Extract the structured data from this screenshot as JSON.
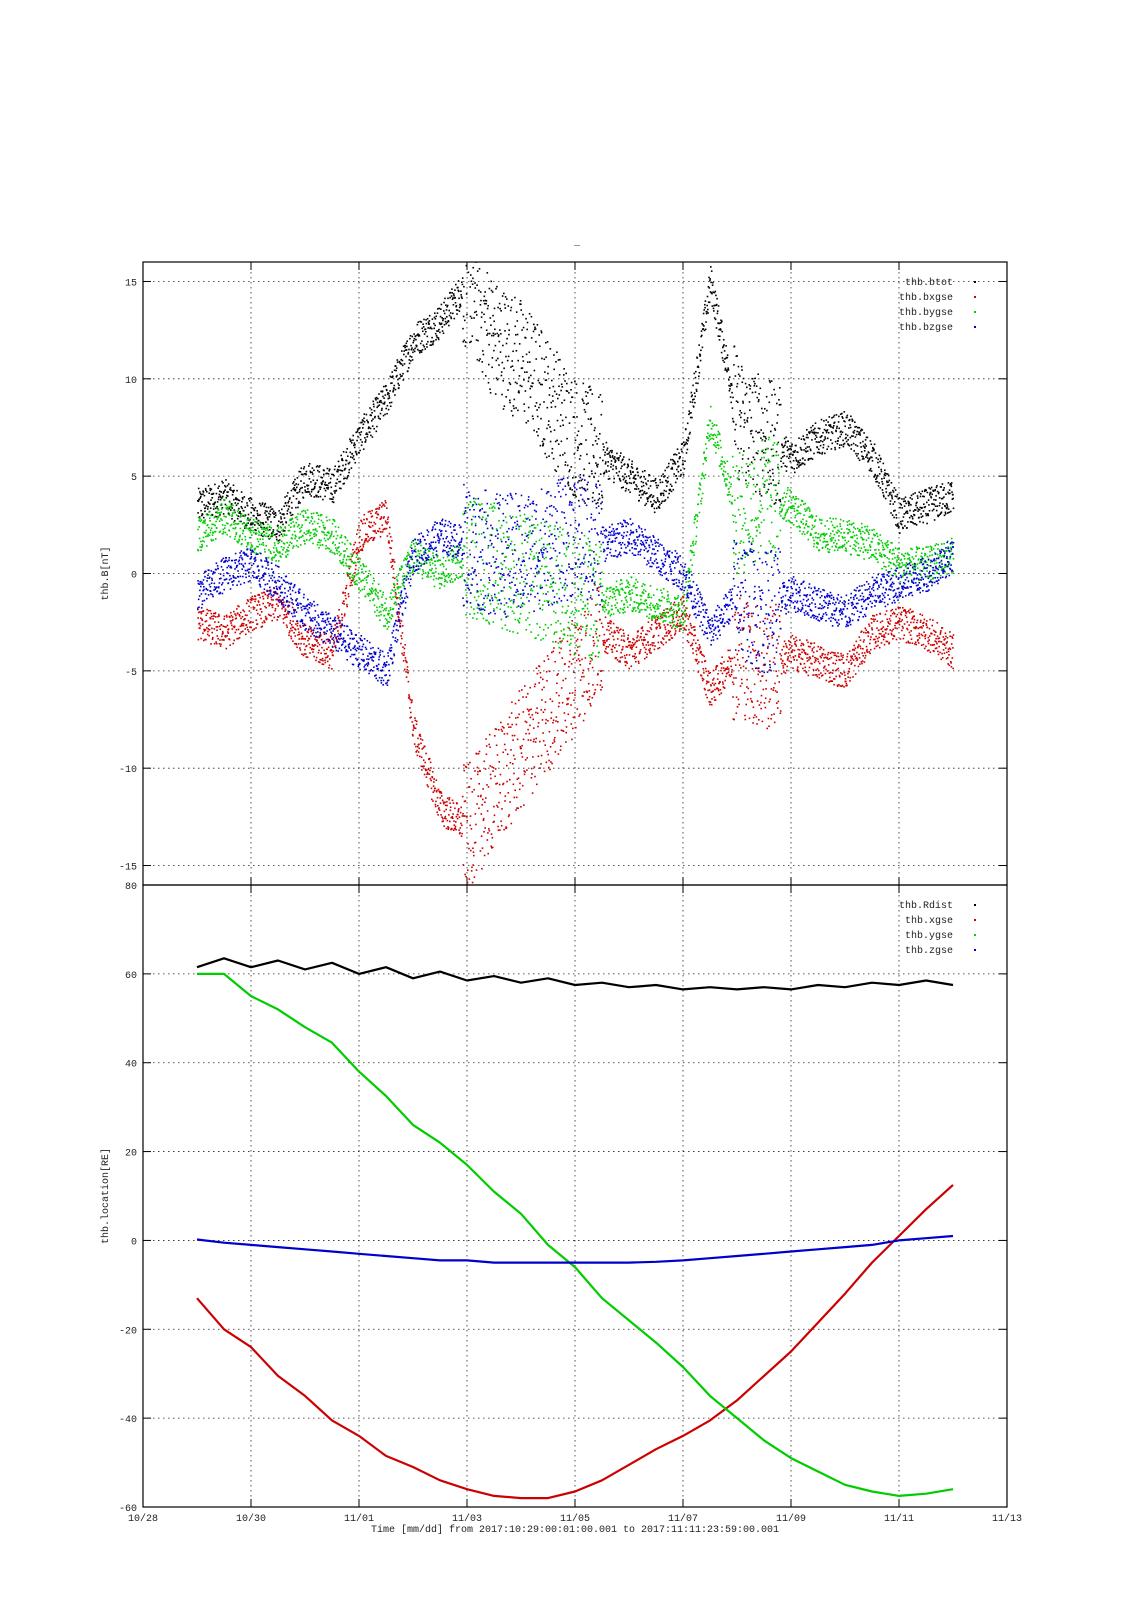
{
  "colors": {
    "black": "#000000",
    "red": "#cc0000",
    "green": "#00cc00",
    "blue": "#0000cc"
  },
  "chart_data": [
    {
      "type": "scatter",
      "title": "",
      "xlabel": "",
      "ylabel": "thb.B[nT]",
      "ylim": [
        -16,
        16
      ],
      "yticks": [
        15,
        10,
        5,
        0,
        -5,
        -10,
        -15
      ],
      "grid": true,
      "legend_position": "top-right",
      "series": [
        {
          "name": "thb.btot",
          "color": "#000000",
          "x": [
            "10/29 00:00",
            "10/29 12:00",
            "10/30 00:00",
            "10/30 12:00",
            "10/31 00:00",
            "10/31 12:00",
            "11/01 00:00",
            "11/01 12:00",
            "11/02 00:00",
            "11/02 12:00",
            "11/03 00:00",
            "11/03 12:00",
            "11/04 00:00",
            "11/04 12:00",
            "11/05 00:00",
            "11/05 12:00",
            "11/06 00:00",
            "11/06 12:00",
            "11/07 00:00",
            "11/07 12:00",
            "11/08 00:00",
            "11/08 12:00",
            "11/09 00:00",
            "11/09 12:00",
            "11/10 00:00",
            "11/10 12:00",
            "11/11 00:00",
            "11/11 12:00",
            "11/12 00:00"
          ],
          "y": [
            3.5,
            4.0,
            3.0,
            2.5,
            5.0,
            4.5,
            7.0,
            9.0,
            12.0,
            13.0,
            15.0,
            12.0,
            11.0,
            9.0,
            7.0,
            6.0,
            5.0,
            4.0,
            6.0,
            15.0,
            8.0,
            7.0,
            6.0,
            7.0,
            7.5,
            6.0,
            3.0,
            3.5,
            4.0
          ]
        },
        {
          "name": "thb.bxgse",
          "color": "#cc0000",
          "x": [
            "10/29 00:00",
            "10/29 12:00",
            "10/30 00:00",
            "10/30 12:00",
            "10/31 00:00",
            "10/31 12:00",
            "11/01 00:00",
            "11/01 12:00",
            "11/02 00:00",
            "11/02 12:00",
            "11/03 00:00",
            "11/03 12:00",
            "11/04 00:00",
            "11/04 12:00",
            "11/05 00:00",
            "11/05 12:00",
            "11/06 00:00",
            "11/06 12:00",
            "11/07 00:00",
            "11/07 12:00",
            "11/08 00:00",
            "11/08 12:00",
            "11/09 00:00",
            "11/09 12:00",
            "11/10 00:00",
            "11/10 12:00",
            "11/11 00:00",
            "11/11 12:00",
            "11/12 00:00"
          ],
          "y": [
            -2.5,
            -3.0,
            -2.0,
            -1.5,
            -3.5,
            -4.0,
            2.0,
            3.0,
            -8.0,
            -12.0,
            -13.0,
            -11.0,
            -9.0,
            -7.0,
            -5.0,
            -3.0,
            -4.0,
            -3.0,
            -2.0,
            -6.0,
            -4.0,
            -5.0,
            -4.0,
            -4.5,
            -5.0,
            -3.0,
            -2.5,
            -3.0,
            -4.0
          ]
        },
        {
          "name": "thb.bygse",
          "color": "#00cc00",
          "x": [
            "10/29 00:00",
            "10/29 12:00",
            "10/30 00:00",
            "10/30 12:00",
            "10/31 00:00",
            "10/31 12:00",
            "11/01 00:00",
            "11/01 12:00",
            "11/02 00:00",
            "11/02 12:00",
            "11/03 00:00",
            "11/03 12:00",
            "11/04 00:00",
            "11/04 12:00",
            "11/05 00:00",
            "11/05 12:00",
            "11/06 00:00",
            "11/06 12:00",
            "11/07 00:00",
            "11/07 12:00",
            "11/08 00:00",
            "11/08 12:00",
            "11/09 00:00",
            "11/09 12:00",
            "11/10 00:00",
            "11/10 12:00",
            "11/11 00:00",
            "11/11 12:00",
            "11/12 00:00"
          ],
          "y": [
            2.0,
            3.0,
            2.0,
            1.5,
            2.5,
            2.0,
            0.0,
            -2.0,
            1.0,
            0.0,
            1.0,
            0.5,
            0.0,
            -0.5,
            -1.0,
            -1.5,
            -1.0,
            -1.5,
            -2.0,
            8.0,
            3.0,
            4.0,
            3.5,
            2.0,
            2.0,
            1.5,
            0.5,
            0.5,
            1.0
          ]
        },
        {
          "name": "thb.bzgse",
          "color": "#0000cc",
          "x": [
            "10/29 00:00",
            "10/29 12:00",
            "10/30 00:00",
            "10/30 12:00",
            "10/31 00:00",
            "10/31 12:00",
            "11/01 00:00",
            "11/01 12:00",
            "11/02 00:00",
            "11/02 12:00",
            "11/03 00:00",
            "11/03 12:00",
            "11/04 00:00",
            "11/04 12:00",
            "11/05 00:00",
            "11/05 12:00",
            "11/06 00:00",
            "11/06 12:00",
            "11/07 00:00",
            "11/07 12:00",
            "11/08 00:00",
            "11/08 12:00",
            "11/09 00:00",
            "11/09 12:00",
            "11/10 00:00",
            "11/10 12:00",
            "11/11 00:00",
            "11/11 12:00",
            "11/12 00:00"
          ],
          "y": [
            -1.0,
            0.0,
            0.5,
            -0.5,
            -2.0,
            -3.0,
            -4.0,
            -5.0,
            1.0,
            2.0,
            1.5,
            1.0,
            1.0,
            1.5,
            2.0,
            1.5,
            2.0,
            1.0,
            0.0,
            -3.0,
            -1.0,
            -2.0,
            -1.0,
            -1.5,
            -2.0,
            -1.0,
            -0.5,
            0.0,
            1.0
          ]
        }
      ]
    },
    {
      "type": "line",
      "title": "",
      "xlabel": "Time [mm/dd]  from 2017:10:29:00:01:00.001  to  2017:11:11:23:59:00.001",
      "ylabel": "thb.location[RE]",
      "xlim": [
        "10/28",
        "11/13"
      ],
      "xticks": [
        "10/28",
        "10/30",
        "11/01",
        "11/03",
        "11/05",
        "11/07",
        "11/09",
        "11/11",
        "11/13"
      ],
      "ylim": [
        -60,
        80
      ],
      "yticks": [
        80,
        60,
        40,
        20,
        0,
        -20,
        -40,
        -60
      ],
      "grid": true,
      "legend_position": "top-right",
      "series": [
        {
          "name": "thb.Rdist",
          "color": "#000000",
          "x": [
            "10/29 00:00",
            "10/29 12:00",
            "10/30 00:00",
            "10/30 12:00",
            "10/31 00:00",
            "10/31 12:00",
            "11/01 00:00",
            "11/01 12:00",
            "11/02 00:00",
            "11/02 12:00",
            "11/03 00:00",
            "11/03 12:00",
            "11/04 00:00",
            "11/04 12:00",
            "11/05 00:00",
            "11/05 12:00",
            "11/06 00:00",
            "11/06 12:00",
            "11/07 00:00",
            "11/07 12:00",
            "11/08 00:00",
            "11/08 12:00",
            "11/09 00:00",
            "11/09 12:00",
            "11/10 00:00",
            "11/10 12:00",
            "11/11 00:00",
            "11/11 12:00",
            "11/12 00:00"
          ],
          "y": [
            61.5,
            63.5,
            61.5,
            63.0,
            61.0,
            62.5,
            60.0,
            61.5,
            59.0,
            60.5,
            58.5,
            59.5,
            58.0,
            59.0,
            57.5,
            58.0,
            57.0,
            57.5,
            56.5,
            57.0,
            56.5,
            57.0,
            56.5,
            57.5,
            57.0,
            58.0,
            57.5,
            58.5,
            57.5
          ]
        },
        {
          "name": "thb.xgse",
          "color": "#cc0000",
          "x": [
            "10/29 00:00",
            "10/29 12:00",
            "10/30 00:00",
            "10/30 12:00",
            "10/31 00:00",
            "10/31 12:00",
            "11/01 00:00",
            "11/01 12:00",
            "11/02 00:00",
            "11/02 12:00",
            "11/03 00:00",
            "11/03 12:00",
            "11/04 00:00",
            "11/04 12:00",
            "11/05 00:00",
            "11/05 12:00",
            "11/06 00:00",
            "11/06 12:00",
            "11/07 00:00",
            "11/07 12:00",
            "11/08 00:00",
            "11/08 12:00",
            "11/09 00:00",
            "11/09 12:00",
            "11/10 00:00",
            "11/10 12:00",
            "11/11 00:00",
            "11/11 12:00",
            "11/12 00:00"
          ],
          "y": [
            -13.0,
            -20.0,
            -24.0,
            -30.5,
            -35.0,
            -40.5,
            -44.0,
            -48.5,
            -51.0,
            -54.0,
            -56.0,
            -57.5,
            -58.0,
            -58.0,
            -56.5,
            -54.0,
            -50.5,
            -47.0,
            -44.0,
            -40.5,
            -36.0,
            -30.5,
            -25.0,
            -18.5,
            -12.0,
            -5.0,
            1.0,
            7.0,
            12.5
          ]
        },
        {
          "name": "thb.ygse",
          "color": "#00cc00",
          "x": [
            "10/29 00:00",
            "10/29 12:00",
            "10/30 00:00",
            "10/30 12:00",
            "10/31 00:00",
            "10/31 12:00",
            "11/01 00:00",
            "11/01 12:00",
            "11/02 00:00",
            "11/02 12:00",
            "11/03 00:00",
            "11/03 12:00",
            "11/04 00:00",
            "11/04 12:00",
            "11/05 00:00",
            "11/05 12:00",
            "11/06 00:00",
            "11/06 12:00",
            "11/07 00:00",
            "11/07 12:00",
            "11/08 00:00",
            "11/08 12:00",
            "11/09 00:00",
            "11/09 12:00",
            "11/10 00:00",
            "11/10 12:00",
            "11/11 00:00",
            "11/11 12:00",
            "11/12 00:00"
          ],
          "y": [
            60.0,
            60.0,
            55.0,
            52.0,
            48.0,
            44.5,
            38.0,
            32.5,
            26.0,
            22.0,
            17.0,
            11.0,
            6.0,
            -1.0,
            -6.0,
            -13.0,
            -18.0,
            -23.0,
            -28.5,
            -35.0,
            -40.0,
            -45.0,
            -49.0,
            -52.0,
            -55.0,
            -56.5,
            -57.5,
            -57.0,
            -56.0
          ]
        },
        {
          "name": "thb.zgse",
          "color": "#0000cc",
          "x": [
            "10/29 00:00",
            "10/29 12:00",
            "10/30 00:00",
            "10/30 12:00",
            "10/31 00:00",
            "10/31 12:00",
            "11/01 00:00",
            "11/01 12:00",
            "11/02 00:00",
            "11/02 12:00",
            "11/03 00:00",
            "11/03 12:00",
            "11/04 00:00",
            "11/04 12:00",
            "11/05 00:00",
            "11/05 12:00",
            "11/06 00:00",
            "11/06 12:00",
            "11/07 00:00",
            "11/07 12:00",
            "11/08 00:00",
            "11/08 12:00",
            "11/09 00:00",
            "11/09 12:00",
            "11/10 00:00",
            "11/10 12:00",
            "11/11 00:00",
            "11/11 12:00",
            "11/12 00:00"
          ],
          "y": [
            0.2,
            -0.5,
            -1.0,
            -1.5,
            -2.0,
            -2.5,
            -3.0,
            -3.5,
            -4.0,
            -4.5,
            -4.5,
            -5.0,
            -5.0,
            -5.0,
            -5.0,
            -5.0,
            -5.0,
            -4.8,
            -4.5,
            -4.0,
            -3.5,
            -3.0,
            -2.5,
            -2.0,
            -1.5,
            -1.0,
            0.0,
            0.5,
            1.0
          ]
        }
      ]
    }
  ],
  "top_title": "_"
}
